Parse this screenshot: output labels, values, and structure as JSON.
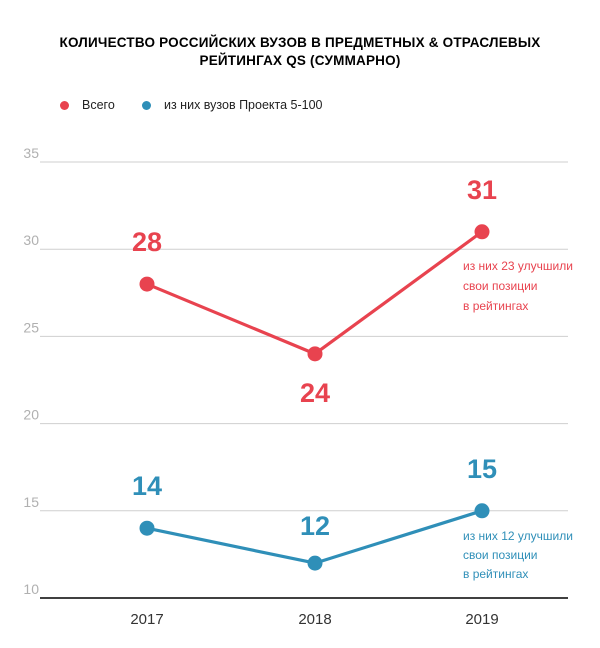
{
  "chart_data": {
    "type": "line",
    "title_lines": [
      "КОЛИЧЕСТВО РОССИЙСКИХ ВУЗОВ В ПРЕДМЕТНЫХ & ОТРАСЛЕВЫХ",
      "РЕЙТИНГАХ QS (СУММАРНО)"
    ],
    "categories": [
      "2017",
      "2018",
      "2019"
    ],
    "ylim": [
      10,
      35
    ],
    "yticks": [
      "10",
      "15",
      "20",
      "25",
      "30",
      "35"
    ],
    "grid": true,
    "legend_position": "top-left",
    "series": [
      {
        "name": "Всего",
        "color": "#e8434f",
        "values": [
          28,
          24,
          31
        ],
        "labels": [
          "28",
          "24",
          "31"
        ],
        "annotation": [
          "из них 23 улучшили",
          "свои позиции",
          "в рейтингах"
        ]
      },
      {
        "name": "из них вузов Проекта 5-100",
        "color": "#2f8fb8",
        "values": [
          14,
          12,
          15
        ],
        "labels": [
          "14",
          "12",
          "15"
        ],
        "annotation": [
          "из них 12 улучшили",
          "свои позиции",
          "в рейтингах"
        ]
      }
    ]
  }
}
